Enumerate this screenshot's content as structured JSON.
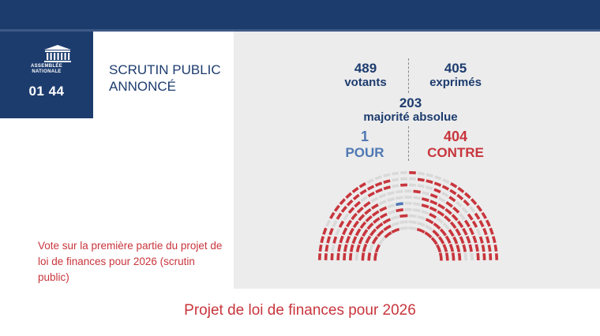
{
  "colors": {
    "navy": "#1d3c6e",
    "red": "#c8353c",
    "pour_blue": "#4f78b3",
    "abstention_grey": "#d9d9d9"
  },
  "logo": {
    "icon": "assemblee-building-icon",
    "name": "ASSEMBLÉE\nNATIONALE"
  },
  "clock": "01 44",
  "status": "SCRUTIN PUBLIC ANNONCÉ",
  "stats": {
    "votants": {
      "value": "489",
      "label": "votants"
    },
    "exprimes": {
      "value": "405",
      "label": "exprimés"
    },
    "majorite": {
      "value": "203",
      "label": "majorité absolue"
    },
    "pour": {
      "value": "1",
      "label": "POUR"
    },
    "contre": {
      "value": "404",
      "label": "CONTRE"
    }
  },
  "hemicycle": {
    "pour_fraction": 0.002,
    "contre_fraction": 0.826,
    "other_fraction": 0.172
  },
  "description": "Vote sur la première partie du projet de loi de finances pour 2026 (scrutin public)",
  "footer_title": "Projet de loi de finances pour 2026",
  "flag_colors": [
    "#1d3c9e",
    "#ffffff",
    "#d9283b"
  ]
}
